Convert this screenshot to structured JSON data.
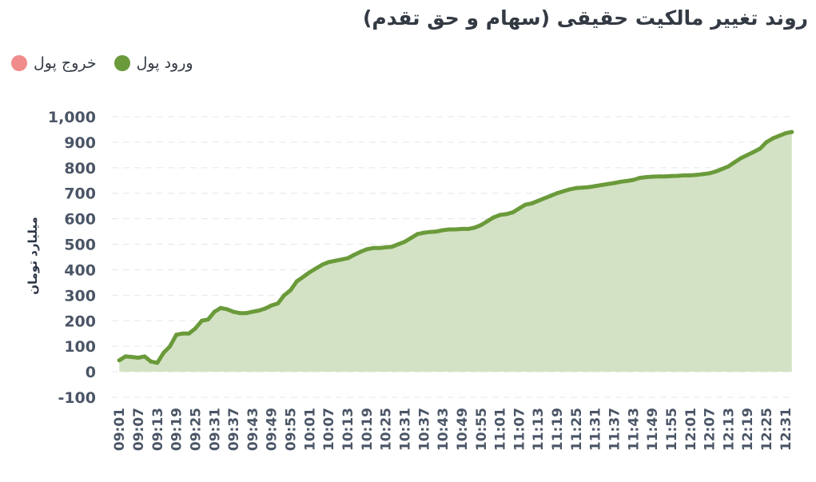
{
  "title": "روند تغییر مالکیت حقیقی (سهام و حق تقدم)",
  "legend": [
    {
      "label": "خروج پول",
      "color": "#f08c8c"
    },
    {
      "label": "ورود پول",
      "color": "#6a9a3a"
    }
  ],
  "chart_data": {
    "type": "area",
    "title": "روند تغییر مالکیت حقیقی (سهام و حق تقدم)",
    "ylabel": "میلیارد تومان",
    "xlabel": "",
    "ylim": [
      -100,
      1000
    ],
    "yticks": [
      "-100",
      "0",
      "100",
      "200",
      "300",
      "400",
      "500",
      "600",
      "700",
      "800",
      "900",
      "1,000"
    ],
    "grid": true,
    "legend_position": "top-left",
    "x_tick_labels": [
      "09:01",
      "09:07",
      "09:13",
      "09:19",
      "09:25",
      "09:31",
      "09:37",
      "09:43",
      "09:49",
      "09:55",
      "10:01",
      "10:07",
      "10:13",
      "10:19",
      "10:25",
      "10:31",
      "10:37",
      "10:43",
      "10:49",
      "10:55",
      "11:01",
      "11:07",
      "11:13",
      "11:19",
      "11:25",
      "11:31",
      "11:37",
      "11:43",
      "11:49",
      "11:55",
      "12:01",
      "12:07",
      "12:13",
      "12:19",
      "12:25",
      "12:31"
    ],
    "series": [
      {
        "name": "ورود پول",
        "color": "#6a9a3a",
        "fill": "#d3e2c4",
        "x": [
          "09:01",
          "09:03",
          "09:05",
          "09:07",
          "09:09",
          "09:11",
          "09:13",
          "09:15",
          "09:17",
          "09:19",
          "09:21",
          "09:23",
          "09:25",
          "09:27",
          "09:29",
          "09:31",
          "09:33",
          "09:35",
          "09:37",
          "09:39",
          "09:41",
          "09:43",
          "09:45",
          "09:47",
          "09:49",
          "09:51",
          "09:53",
          "09:55",
          "09:57",
          "09:59",
          "10:01",
          "10:03",
          "10:05",
          "10:07",
          "10:09",
          "10:11",
          "10:13",
          "10:15",
          "10:17",
          "10:19",
          "10:21",
          "10:23",
          "10:25",
          "10:27",
          "10:29",
          "10:31",
          "10:33",
          "10:35",
          "10:37",
          "10:39",
          "10:41",
          "10:43",
          "10:45",
          "10:47",
          "10:49",
          "10:51",
          "10:53",
          "10:55",
          "10:57",
          "10:59",
          "11:01",
          "11:03",
          "11:05",
          "11:07",
          "11:09",
          "11:11",
          "11:13",
          "11:15",
          "11:17",
          "11:19",
          "11:21",
          "11:23",
          "11:25",
          "11:27",
          "11:29",
          "11:31",
          "11:33",
          "11:35",
          "11:37",
          "11:39",
          "11:41",
          "11:43",
          "11:45",
          "11:47",
          "11:49",
          "11:51",
          "11:53",
          "11:55",
          "11:57",
          "11:59",
          "12:01",
          "12:03",
          "12:05",
          "12:07",
          "12:09",
          "12:11",
          "12:13",
          "12:15",
          "12:17",
          "12:19",
          "12:21",
          "12:23",
          "12:25",
          "12:27",
          "12:29",
          "12:31",
          "12:33"
        ],
        "values": [
          45,
          60,
          58,
          55,
          60,
          40,
          35,
          75,
          100,
          145,
          150,
          150,
          170,
          200,
          205,
          235,
          250,
          245,
          235,
          230,
          230,
          235,
          240,
          248,
          260,
          268,
          300,
          320,
          355,
          372,
          390,
          405,
          420,
          430,
          435,
          440,
          445,
          458,
          470,
          480,
          485,
          485,
          488,
          490,
          500,
          510,
          525,
          540,
          545,
          548,
          550,
          555,
          558,
          558,
          560,
          560,
          565,
          575,
          590,
          605,
          615,
          618,
          625,
          640,
          655,
          660,
          670,
          680,
          690,
          700,
          708,
          715,
          720,
          722,
          724,
          728,
          732,
          736,
          740,
          745,
          748,
          752,
          760,
          763,
          765,
          766,
          766,
          767,
          768,
          770,
          770,
          772,
          775,
          778,
          785,
          795,
          805,
          822,
          838,
          850,
          862,
          875,
          900,
          915,
          925,
          935,
          940
        ]
      }
    ]
  }
}
